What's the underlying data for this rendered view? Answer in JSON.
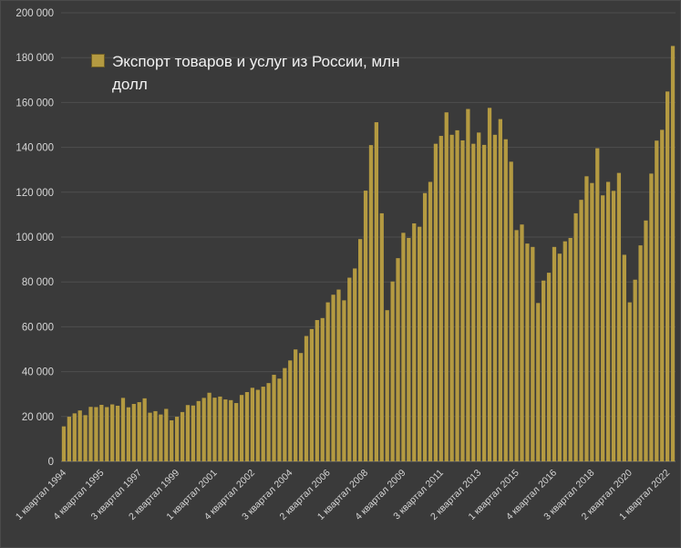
{
  "chart_data": {
    "type": "bar",
    "legend": "Экспорт товаров и услуг из России, млн долл",
    "bar_color": "#b49a41",
    "background": "#3a3a3a",
    "grid_color": "#4e4e4e",
    "baseline_color": "#6e6e6e",
    "label_color": "#d6d6d6",
    "ylim": [
      0,
      200000
    ],
    "ytick_step": 20000,
    "ytick_labels": [
      "0",
      "20 000",
      "40 000",
      "60 000",
      "80 000",
      "100 000",
      "120 000",
      "140 000",
      "160 000",
      "180 000",
      "200 000"
    ],
    "xtick_every": 7,
    "xtick_labels": [
      "1 квартал 1994",
      "4 квартал 1995",
      "3 квартал 1997",
      "2 квартал 1999",
      "1 квартал 2001",
      "4 квартал 2002",
      "3 квартал 2004",
      "2 квартал 2006",
      "1 квартал 2008",
      "4 квартал 2009",
      "3 квартал 2011",
      "2 квартал 2013",
      "1 квартал 2015",
      "4 квартал 2016",
      "3 квартал 2018",
      "2 квартал 2020",
      "1 квартал 2022"
    ],
    "x_start": "1 квартал 1994",
    "x_end": "2 квартал 2022",
    "values": [
      15600,
      19900,
      21400,
      22700,
      20600,
      24300,
      24200,
      25200,
      24200,
      25400,
      24800,
      28300,
      24100,
      25600,
      26400,
      28100,
      21700,
      22400,
      20900,
      23400,
      18300,
      19900,
      22000,
      25100,
      24900,
      26900,
      28300,
      30600,
      28400,
      28900,
      27600,
      27300,
      26000,
      29600,
      30900,
      32800,
      31900,
      33300,
      34900,
      38600,
      36900,
      41600,
      45000,
      49900,
      48300,
      55900,
      59000,
      63000,
      63900,
      70900,
      74300,
      76600,
      71800,
      81900,
      86000,
      99100,
      120700,
      141000,
      151200,
      110600,
      67400,
      80200,
      90600,
      101900,
      99600,
      106100,
      104600,
      119600,
      124600,
      141600,
      145100,
      155600,
      145600,
      147600,
      143100,
      157100,
      141600,
      146600,
      141100,
      157600,
      145600,
      152600,
      143600,
      133600,
      103100,
      105600,
      97100,
      95600,
      70600,
      80600,
      84100,
      95600,
      92600,
      98100,
      99600,
      110600,
      116600,
      127100,
      124100,
      139600,
      118600,
      124600,
      120600,
      128600,
      92100,
      70900,
      81000,
      96300,
      107400,
      128300,
      143000,
      147800,
      164900,
      185200
    ]
  }
}
